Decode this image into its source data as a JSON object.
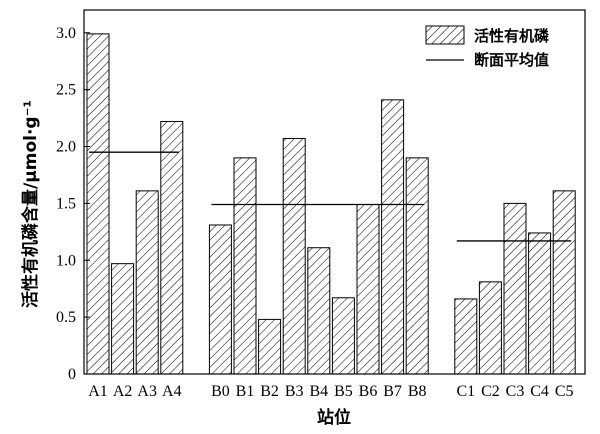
{
  "chart_data": {
    "type": "bar",
    "categories": [
      "A1",
      "A2",
      "A3",
      "A4",
      "B0",
      "B1",
      "B2",
      "B3",
      "B4",
      "B5",
      "B6",
      "B7",
      "B8",
      "C1",
      "C2",
      "C3",
      "C4",
      "C5"
    ],
    "groups": [
      {
        "members": [
          "A1",
          "A2",
          "A3",
          "A4"
        ],
        "mean": 1.95
      },
      {
        "members": [
          "B0",
          "B1",
          "B2",
          "B3",
          "B4",
          "B5",
          "B6",
          "B7",
          "B8"
        ],
        "mean": 1.49
      },
      {
        "members": [
          "C1",
          "C2",
          "C3",
          "C4",
          "C5"
        ],
        "mean": 1.17
      }
    ],
    "series": [
      {
        "name": "活性有机磷",
        "values": [
          2.99,
          0.97,
          1.61,
          2.22,
          1.31,
          1.9,
          0.48,
          2.07,
          1.11,
          0.67,
          1.49,
          2.41,
          1.9,
          0.66,
          0.81,
          1.5,
          1.24,
          1.61
        ]
      }
    ],
    "mean_label": "断面平均值",
    "xlabel": "站位",
    "ylabel": "活性有机磷含量/μmol·g⁻¹",
    "ylim": [
      0,
      3.2
    ],
    "yticks": [
      "0",
      "0.5",
      "1.0",
      "1.5",
      "2.0",
      "2.5",
      "3.0"
    ],
    "grid": false,
    "legend_position": "top-right",
    "colors": {
      "bar_fill": "#ffffff",
      "hatch": "#000000",
      "line": "#000000"
    }
  }
}
